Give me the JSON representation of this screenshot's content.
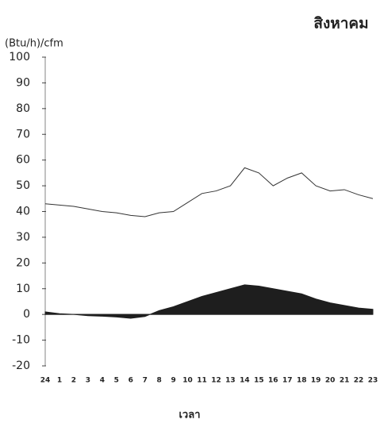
{
  "chart_data": {
    "type": "line",
    "title": "สิงหาคม",
    "y_label": "(Btu/h)/cfm",
    "x_label": "เวลา",
    "categories": [
      "24",
      "1",
      "2",
      "3",
      "4",
      "5",
      "6",
      "7",
      "8",
      "9",
      "10",
      "11",
      "12",
      "13",
      "14",
      "15",
      "16",
      "17",
      "18",
      "19",
      "20",
      "21",
      "22",
      "23"
    ],
    "series": [
      {
        "color": "#333333",
        "fill": false,
        "values": [
          43,
          42.5,
          42,
          41,
          40,
          39.5,
          38.5,
          38,
          39.5,
          40,
          43.5,
          47,
          48,
          50,
          57,
          55,
          50,
          53,
          55,
          50,
          48,
          48.5,
          46.5,
          45
        ]
      },
      {
        "color": "#1e1e1e",
        "fill": true,
        "values": [
          1,
          0.3,
          0,
          -0.5,
          -0.7,
          -1,
          -1.5,
          -0.8,
          1.5,
          3,
          5,
          7,
          8.5,
          10,
          11.5,
          11,
          10,
          9,
          8,
          6,
          4.5,
          3.5,
          2.5,
          2
        ]
      }
    ],
    "ylim": [
      -20,
      100
    ],
    "yticks": [
      -20,
      -10,
      0,
      10,
      20,
      30,
      40,
      50,
      60,
      70,
      80,
      90,
      100
    ],
    "grid": false
  }
}
